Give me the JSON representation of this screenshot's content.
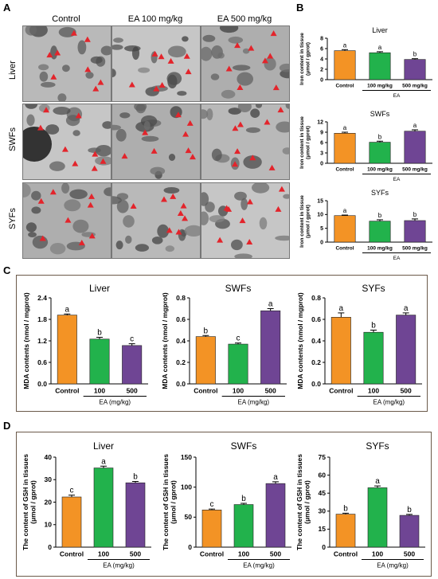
{
  "panels": {
    "a": "A",
    "b": "B",
    "c": "C",
    "d": "D"
  },
  "em": {
    "columns": [
      "Control",
      "EA 100 mg/kg",
      "EA 500 mg/kg"
    ],
    "rows": [
      "Liver",
      "SWFs",
      "SYFs"
    ]
  },
  "colors": {
    "control": "#f39325",
    "dose100": "#22b24c",
    "dose500": "#6f4594"
  },
  "chart_data": [
    {
      "id": "b-liver",
      "type": "bar",
      "title": "Liver",
      "ylabel": "Iron content in tissue (μmol / gprot)",
      "categories": [
        "Control",
        "100 mg/kg",
        "500 mg/kg"
      ],
      "group_label": "EA",
      "values": [
        5.6,
        5.2,
        3.9
      ],
      "errors": [
        0.2,
        0.2,
        0.15
      ],
      "letters": [
        "a",
        "a",
        "b"
      ],
      "ylim": [
        0,
        8
      ],
      "yticks": [
        0,
        2,
        4,
        6,
        8
      ]
    },
    {
      "id": "b-swfs",
      "type": "bar",
      "title": "SWFs",
      "ylabel": "Iron content in tissue (μmol / gprot)",
      "categories": [
        "Control",
        "100 mg/kg",
        "500 mg/kg"
      ],
      "group_label": "EA",
      "values": [
        8.7,
        6.1,
        9.3
      ],
      "errors": [
        0.3,
        0.3,
        0.4
      ],
      "letters": [
        "a",
        "b",
        "a"
      ],
      "ylim": [
        0,
        12
      ],
      "yticks": [
        0,
        3,
        6,
        9,
        12
      ]
    },
    {
      "id": "b-syfs",
      "type": "bar",
      "title": "SYFs",
      "ylabel": "Iron content in tissue (μmol / gprot)",
      "categories": [
        "Control",
        "100 mg/kg",
        "500 mg/kg"
      ],
      "group_label": "EA",
      "values": [
        9.6,
        7.6,
        7.8
      ],
      "errors": [
        0.2,
        0.5,
        0.6
      ],
      "letters": [
        "a",
        "b",
        "b"
      ],
      "ylim": [
        0,
        15
      ],
      "yticks": [
        0,
        5,
        10,
        15
      ]
    },
    {
      "id": "c-liver",
      "type": "bar",
      "title": "Liver",
      "ylabel": "MDA contents (nmol / mgprot)",
      "categories": [
        "Control",
        "100",
        "500"
      ],
      "group_label": "EA (mg/kg)",
      "values": [
        1.92,
        1.25,
        1.07
      ],
      "errors": [
        0.03,
        0.05,
        0.05
      ],
      "letters": [
        "a",
        "b",
        "c"
      ],
      "ylim": [
        0,
        2.4
      ],
      "yticks": [
        "0.0",
        "0.6",
        "1.2",
        "1.8",
        "2.4"
      ]
    },
    {
      "id": "c-swfs",
      "type": "bar",
      "title": "SWFs",
      "ylabel": "MDA contents (nmol / mgprot)",
      "categories": [
        "Control",
        "100",
        "500"
      ],
      "group_label": "EA (mg/kg)",
      "values": [
        0.44,
        0.37,
        0.68
      ],
      "errors": [
        0.01,
        0.01,
        0.02
      ],
      "letters": [
        "b",
        "c",
        "a"
      ],
      "ylim": [
        0,
        0.8
      ],
      "yticks": [
        "0.0",
        "0.2",
        "0.4",
        "0.6",
        "0.8"
      ]
    },
    {
      "id": "c-syfs",
      "type": "bar",
      "title": "SYFs",
      "ylabel": "MDA contents (nmol / mgprot)",
      "categories": [
        "Control",
        "100",
        "500"
      ],
      "group_label": "EA (mg/kg)",
      "values": [
        0.62,
        0.48,
        0.64
      ],
      "errors": [
        0.04,
        0.02,
        0.02
      ],
      "letters": [
        "a",
        "b",
        "a"
      ],
      "ylim": [
        0,
        0.8
      ],
      "yticks": [
        "0.0",
        "0.2",
        "0.4",
        "0.6",
        "0.8"
      ]
    },
    {
      "id": "d-liver",
      "type": "bar",
      "title": "Liver",
      "ylabel": "The content of GSH in tissues (μmol / gprot)",
      "categories": [
        "Control",
        "100",
        "500"
      ],
      "group_label": "EA (mg/kg)",
      "values": [
        22.3,
        35.2,
        28.6
      ],
      "errors": [
        0.8,
        0.8,
        0.6
      ],
      "letters": [
        "c",
        "a",
        "b"
      ],
      "ylim": [
        0,
        40
      ],
      "yticks": [
        0,
        10,
        20,
        30,
        40
      ]
    },
    {
      "id": "d-swfs",
      "type": "bar",
      "title": "SWFs",
      "ylabel": "The content of GSH in tissues (μmol / gprot)",
      "categories": [
        "Control",
        "100",
        "500"
      ],
      "group_label": "EA (mg/kg)",
      "values": [
        62,
        71,
        106
      ],
      "errors": [
        1.5,
        2,
        3
      ],
      "letters": [
        "c",
        "b",
        "a"
      ],
      "ylim": [
        0,
        150
      ],
      "yticks": [
        0,
        50,
        100,
        150
      ]
    },
    {
      "id": "d-syfs",
      "type": "bar",
      "title": "SYFs",
      "ylabel": "The content of GSH in tissues (μmol / gprot)",
      "categories": [
        "Control",
        "100",
        "500"
      ],
      "group_label": "EA (mg/kg)",
      "values": [
        27.5,
        49.5,
        26.5
      ],
      "errors": [
        0.8,
        1.5,
        0.8
      ],
      "letters": [
        "b",
        "a",
        "b"
      ],
      "ylim": [
        0,
        75
      ],
      "yticks": [
        0,
        15,
        30,
        45,
        60,
        75
      ]
    }
  ]
}
